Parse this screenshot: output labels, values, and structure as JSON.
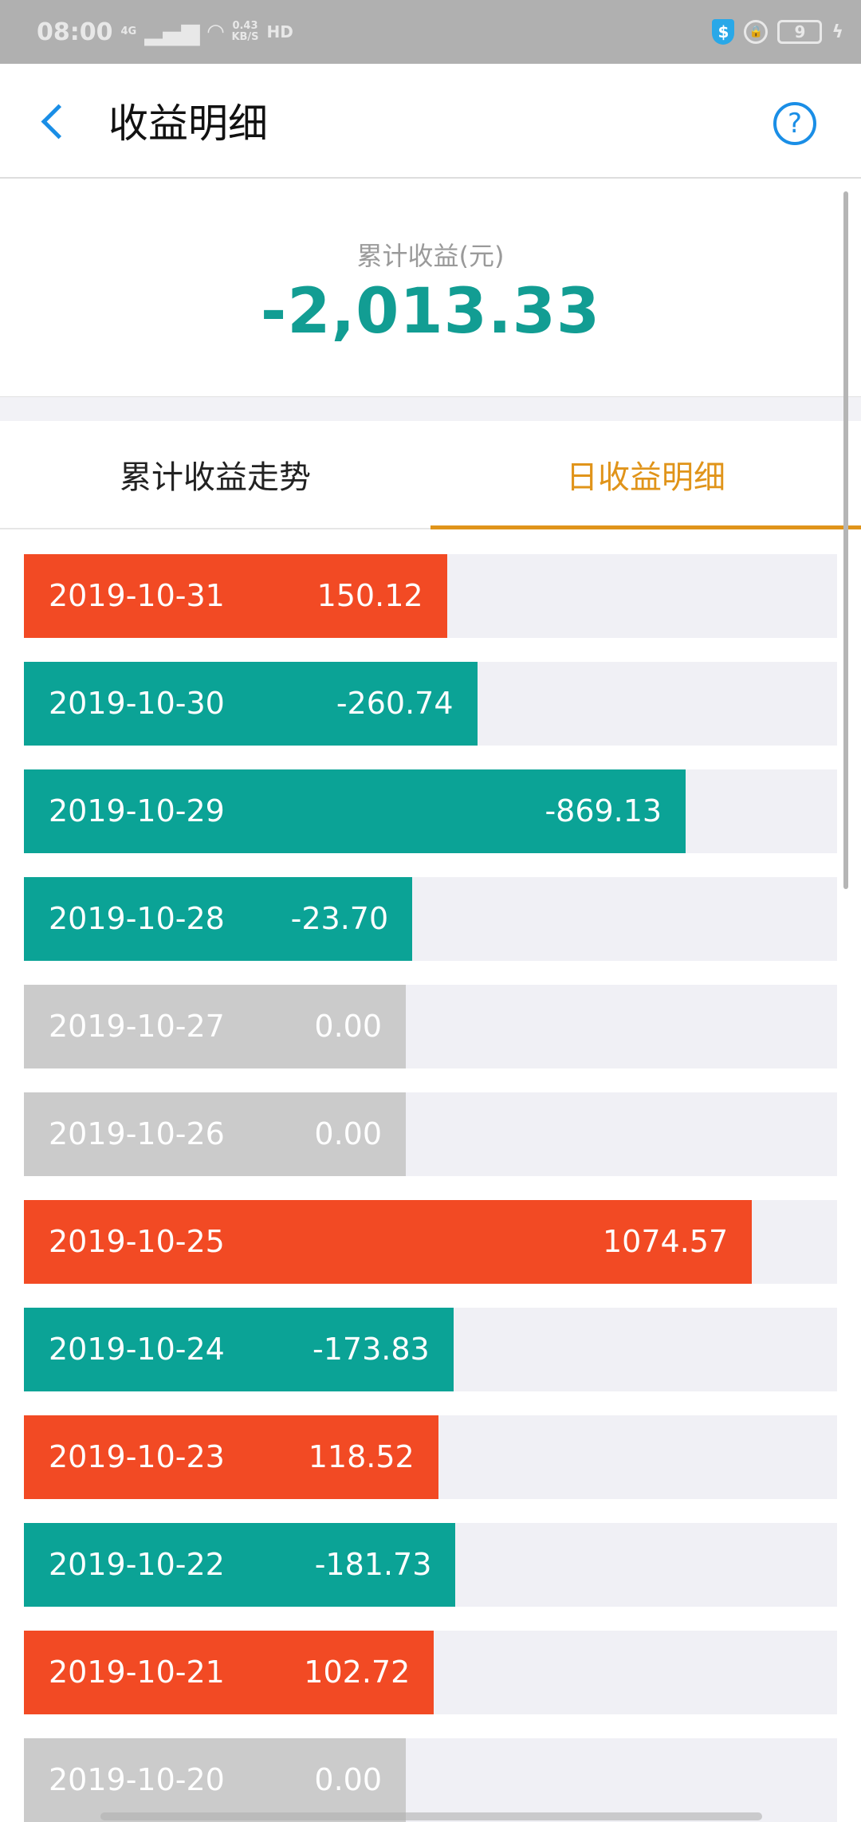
{
  "status_bar": {
    "time": "08:00",
    "network": "4G",
    "speed_value": "0.43",
    "speed_unit": "KB/S",
    "hd": "HD",
    "battery": "9"
  },
  "header": {
    "title": "收益明细",
    "back_icon": "chevron-left-icon",
    "help_icon": "question-circle-icon"
  },
  "summary": {
    "label": "累计收益(元)",
    "value": "-2,013.33"
  },
  "tabs": [
    {
      "label": "累计收益走势",
      "active": false
    },
    {
      "label": "日收益明细",
      "active": true
    }
  ],
  "colors": {
    "positive": "#F24A24",
    "negative": "#0BA396",
    "zero": "#CBCBCB",
    "track": "#F0F0F5",
    "accent": "#E0941A"
  },
  "daily": [
    {
      "date": "2019-10-31",
      "value": "150.12"
    },
    {
      "date": "2019-10-30",
      "value": "-260.74"
    },
    {
      "date": "2019-10-29",
      "value": "-869.13"
    },
    {
      "date": "2019-10-28",
      "value": "-23.70"
    },
    {
      "date": "2019-10-27",
      "value": "0.00"
    },
    {
      "date": "2019-10-26",
      "value": "0.00"
    },
    {
      "date": "2019-10-25",
      "value": "1074.57"
    },
    {
      "date": "2019-10-24",
      "value": "-173.83"
    },
    {
      "date": "2019-10-23",
      "value": "118.52"
    },
    {
      "date": "2019-10-22",
      "value": "-181.73"
    },
    {
      "date": "2019-10-21",
      "value": "102.72"
    },
    {
      "date": "2019-10-20",
      "value": "0.00"
    }
  ]
}
